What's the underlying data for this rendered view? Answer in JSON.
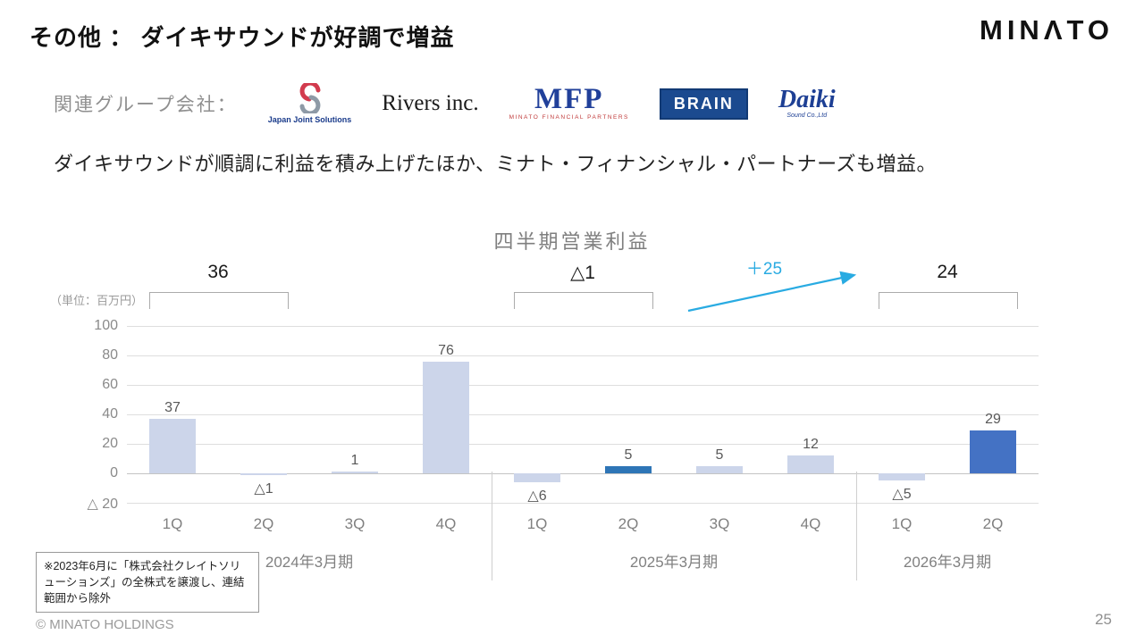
{
  "slide": {
    "title": "その他 ： ダイキサウンドが好調で増益",
    "brand": "MINΛTO",
    "group_label": "関連グループ会社：",
    "description": "ダイキサウンドが順調に利益を積み上げたほか、ミナト・フィナンシャル・パートナーズも増益。",
    "footnote": "※2023年6月に「株式会社クレイトソリューションズ」の全株式を譲渡し、連結範囲から除外",
    "copyright": "© MINATO HOLDINGS",
    "page_number": "25"
  },
  "logos": {
    "jjs": {
      "label": "Japan Joint Solutions"
    },
    "rivers": {
      "label": "Rivers inc."
    },
    "mfp": {
      "label": "MFP",
      "sub": "MINATO FINANCIAL PARTNERS"
    },
    "brain": {
      "label": "BRAIN"
    },
    "daiki": {
      "label": "Daiki",
      "sub": "Sound Co.,Ltd"
    }
  },
  "chart_data": {
    "type": "bar",
    "title": "四半期営業利益",
    "unit_label": "（単位：百万円）",
    "categories": [
      "1Q",
      "2Q",
      "3Q",
      "4Q",
      "1Q",
      "2Q",
      "3Q",
      "4Q",
      "1Q",
      "2Q"
    ],
    "values": [
      37,
      -1,
      1,
      76,
      -6,
      5,
      5,
      12,
      -5,
      29
    ],
    "labels": [
      "37",
      "△1",
      "1",
      "76",
      "△6",
      "5",
      "5",
      "12",
      "△5",
      "29"
    ],
    "highlights": {
      "5": "#2e75b6",
      "9": "#4472c4"
    },
    "groups": [
      {
        "label": "2024年3月期",
        "span": [
          0,
          3
        ]
      },
      {
        "label": "2025年3月期",
        "span": [
          4,
          7
        ]
      },
      {
        "label": "2026年3月期",
        "span": [
          8,
          9
        ]
      }
    ],
    "half_year_sums": [
      {
        "label": "36",
        "span": [
          0,
          1
        ]
      },
      {
        "label": "△1",
        "span": [
          4,
          5
        ]
      },
      {
        "label": "24",
        "span": [
          8,
          9
        ]
      }
    ],
    "arrow_label": "＋25",
    "y_ticks": [
      "100",
      "80",
      "60",
      "40",
      "20",
      "0",
      "△ 20"
    ],
    "y_tick_values": [
      100,
      80,
      60,
      40,
      20,
      0,
      -20
    ],
    "ylim": [
      -20,
      100
    ],
    "grid": true,
    "legend": "none",
    "colors": {
      "bar": "#ccd5ea",
      "highlight_2q_2025": "#2e75b6",
      "highlight_2q_2026": "#4472c4",
      "arrow": "#29abe2"
    }
  }
}
